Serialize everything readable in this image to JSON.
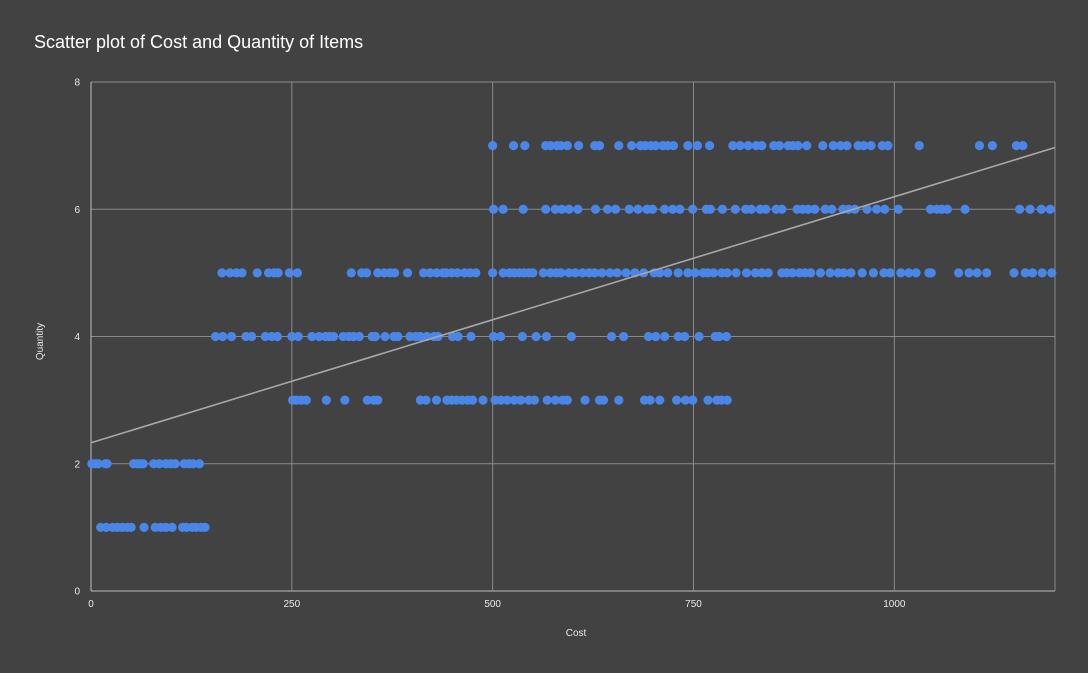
{
  "chart_data": {
    "type": "scatter",
    "title": "Scatter plot of Cost and Quantity of Items",
    "xlabel": "Cost",
    "ylabel": "Quantity",
    "xlim": [
      0,
      1200
    ],
    "ylim": [
      0,
      8
    ],
    "x_ticks": [
      "0",
      "250",
      "500",
      "750",
      "1000"
    ],
    "x_tick_values": [
      0,
      250,
      500,
      750,
      1000
    ],
    "y_ticks": [
      "0",
      "2",
      "4",
      "6",
      "8"
    ],
    "y_tick_values": [
      0,
      2,
      4,
      6,
      8
    ],
    "grid": true,
    "point_color": "#4a86e8",
    "trendline": {
      "type": "linear",
      "start": [
        0,
        2.33
      ],
      "end": [
        1200,
        6.97
      ],
      "color": "#a8a8a8"
    },
    "series": [
      {
        "points": [
          [
            1,
            2
          ],
          [
            5,
            2
          ],
          [
            9,
            2
          ],
          [
            18,
            2
          ],
          [
            20,
            2
          ],
          [
            53,
            2
          ],
          [
            58,
            2
          ],
          [
            62,
            2
          ],
          [
            65,
            2
          ],
          [
            78,
            2
          ],
          [
            85,
            2
          ],
          [
            93,
            2
          ],
          [
            99,
            2
          ],
          [
            105,
            2
          ],
          [
            116,
            2
          ],
          [
            122,
            2
          ],
          [
            127,
            2
          ],
          [
            135,
            2
          ],
          [
            12,
            1
          ],
          [
            19,
            1
          ],
          [
            27,
            1
          ],
          [
            33,
            1
          ],
          [
            39,
            1
          ],
          [
            45,
            1
          ],
          [
            50,
            1
          ],
          [
            66,
            1
          ],
          [
            80,
            1
          ],
          [
            87,
            1
          ],
          [
            93,
            1
          ],
          [
            101,
            1
          ],
          [
            114,
            1
          ],
          [
            119,
            1
          ],
          [
            126,
            1
          ],
          [
            131,
            1
          ],
          [
            137,
            1
          ],
          [
            142,
            1
          ],
          [
            163,
            5
          ],
          [
            173,
            5
          ],
          [
            181,
            5
          ],
          [
            188,
            5
          ],
          [
            207,
            5
          ],
          [
            221,
            5
          ],
          [
            228,
            5
          ],
          [
            233,
            5
          ],
          [
            247,
            5
          ],
          [
            257,
            5
          ],
          [
            324,
            5
          ],
          [
            337,
            5
          ],
          [
            343,
            5
          ],
          [
            357,
            5
          ],
          [
            365,
            5
          ],
          [
            372,
            5
          ],
          [
            378,
            5
          ],
          [
            394,
            5
          ],
          [
            414,
            5
          ],
          [
            422,
            5
          ],
          [
            430,
            5
          ],
          [
            438,
            5
          ],
          [
            442,
            5
          ],
          [
            449,
            5
          ],
          [
            456,
            5
          ],
          [
            465,
            5
          ],
          [
            472,
            5
          ],
          [
            479,
            5
          ],
          [
            500,
            5
          ],
          [
            513,
            5
          ],
          [
            521,
            5
          ],
          [
            527,
            5
          ],
          [
            533,
            5
          ],
          [
            539,
            5
          ],
          [
            545,
            5
          ],
          [
            550,
            5
          ],
          [
            563,
            5
          ],
          [
            572,
            5
          ],
          [
            579,
            5
          ],
          [
            585,
            5
          ],
          [
            595,
            5
          ],
          [
            603,
            5
          ],
          [
            612,
            5
          ],
          [
            620,
            5
          ],
          [
            627,
            5
          ],
          [
            636,
            5
          ],
          [
            646,
            5
          ],
          [
            655,
            5
          ],
          [
            666,
            5
          ],
          [
            677,
            5
          ],
          [
            688,
            5
          ],
          [
            701,
            5
          ],
          [
            708,
            5
          ],
          [
            718,
            5
          ],
          [
            731,
            5
          ],
          [
            743,
            5
          ],
          [
            752,
            5
          ],
          [
            762,
            5
          ],
          [
            768,
            5
          ],
          [
            775,
            5
          ],
          [
            785,
            5
          ],
          [
            792,
            5
          ],
          [
            803,
            5
          ],
          [
            816,
            5
          ],
          [
            827,
            5
          ],
          [
            835,
            5
          ],
          [
            843,
            5
          ],
          [
            860,
            5
          ],
          [
            866,
            5
          ],
          [
            873,
            5
          ],
          [
            882,
            5
          ],
          [
            889,
            5
          ],
          [
            896,
            5
          ],
          [
            908,
            5
          ],
          [
            920,
            5
          ],
          [
            930,
            5
          ],
          [
            937,
            5
          ],
          [
            946,
            5
          ],
          [
            960,
            5
          ],
          [
            974,
            5
          ],
          [
            987,
            5
          ],
          [
            995,
            5
          ],
          [
            1008,
            5
          ],
          [
            1018,
            5
          ],
          [
            1027,
            5
          ],
          [
            1043,
            5
          ],
          [
            1046,
            5
          ],
          [
            1080,
            5
          ],
          [
            1093,
            5
          ],
          [
            1103,
            5
          ],
          [
            1115,
            5
          ],
          [
            1149,
            5
          ],
          [
            1163,
            5
          ],
          [
            1172,
            5
          ],
          [
            1184,
            5
          ],
          [
            1196,
            5
          ],
          [
            155,
            4
          ],
          [
            164,
            4
          ],
          [
            175,
            4
          ],
          [
            193,
            4
          ],
          [
            200,
            4
          ],
          [
            217,
            4
          ],
          [
            225,
            4
          ],
          [
            232,
            4
          ],
          [
            250,
            4
          ],
          [
            258,
            4
          ],
          [
            275,
            4
          ],
          [
            284,
            4
          ],
          [
            292,
            4
          ],
          [
            297,
            4
          ],
          [
            302,
            4
          ],
          [
            314,
            4
          ],
          [
            321,
            4
          ],
          [
            327,
            4
          ],
          [
            334,
            4
          ],
          [
            350,
            4
          ],
          [
            354,
            4
          ],
          [
            366,
            4
          ],
          [
            377,
            4
          ],
          [
            382,
            4
          ],
          [
            397,
            4
          ],
          [
            404,
            4
          ],
          [
            410,
            4
          ],
          [
            418,
            4
          ],
          [
            427,
            4
          ],
          [
            432,
            4
          ],
          [
            450,
            4
          ],
          [
            457,
            4
          ],
          [
            473,
            4
          ],
          [
            501,
            4
          ],
          [
            510,
            4
          ],
          [
            537,
            4
          ],
          [
            554,
            4
          ],
          [
            567,
            4
          ],
          [
            598,
            4
          ],
          [
            648,
            4
          ],
          [
            663,
            4
          ],
          [
            694,
            4
          ],
          [
            703,
            4
          ],
          [
            714,
            4
          ],
          [
            731,
            4
          ],
          [
            739,
            4
          ],
          [
            757,
            4
          ],
          [
            777,
            4
          ],
          [
            782,
            4
          ],
          [
            791,
            4
          ],
          [
            251,
            3
          ],
          [
            256,
            3
          ],
          [
            262,
            3
          ],
          [
            268,
            3
          ],
          [
            293,
            3
          ],
          [
            316,
            3
          ],
          [
            344,
            3
          ],
          [
            352,
            3
          ],
          [
            357,
            3
          ],
          [
            410,
            3
          ],
          [
            417,
            3
          ],
          [
            430,
            3
          ],
          [
            443,
            3
          ],
          [
            449,
            3
          ],
          [
            455,
            3
          ],
          [
            462,
            3
          ],
          [
            469,
            3
          ],
          [
            475,
            3
          ],
          [
            488,
            3
          ],
          [
            503,
            3
          ],
          [
            510,
            3
          ],
          [
            518,
            3
          ],
          [
            527,
            3
          ],
          [
            535,
            3
          ],
          [
            545,
            3
          ],
          [
            552,
            3
          ],
          [
            568,
            3
          ],
          [
            578,
            3
          ],
          [
            587,
            3
          ],
          [
            593,
            3
          ],
          [
            615,
            3
          ],
          [
            633,
            3
          ],
          [
            638,
            3
          ],
          [
            657,
            3
          ],
          [
            689,
            3
          ],
          [
            696,
            3
          ],
          [
            708,
            3
          ],
          [
            729,
            3
          ],
          [
            740,
            3
          ],
          [
            749,
            3
          ],
          [
            768,
            3
          ],
          [
            779,
            3
          ],
          [
            785,
            3
          ],
          [
            792,
            3
          ],
          [
            501,
            6
          ],
          [
            513,
            6
          ],
          [
            538,
            6
          ],
          [
            566,
            6
          ],
          [
            578,
            6
          ],
          [
            586,
            6
          ],
          [
            595,
            6
          ],
          [
            606,
            6
          ],
          [
            628,
            6
          ],
          [
            643,
            6
          ],
          [
            653,
            6
          ],
          [
            670,
            6
          ],
          [
            681,
            6
          ],
          [
            692,
            6
          ],
          [
            699,
            6
          ],
          [
            714,
            6
          ],
          [
            724,
            6
          ],
          [
            733,
            6
          ],
          [
            749,
            6
          ],
          [
            766,
            6
          ],
          [
            771,
            6
          ],
          [
            786,
            6
          ],
          [
            802,
            6
          ],
          [
            815,
            6
          ],
          [
            822,
            6
          ],
          [
            833,
            6
          ],
          [
            840,
            6
          ],
          [
            853,
            6
          ],
          [
            860,
            6
          ],
          [
            879,
            6
          ],
          [
            886,
            6
          ],
          [
            893,
            6
          ],
          [
            901,
            6
          ],
          [
            914,
            6
          ],
          [
            922,
            6
          ],
          [
            936,
            6
          ],
          [
            943,
            6
          ],
          [
            951,
            6
          ],
          [
            966,
            6
          ],
          [
            978,
            6
          ],
          [
            988,
            6
          ],
          [
            1005,
            6
          ],
          [
            1045,
            6
          ],
          [
            1053,
            6
          ],
          [
            1059,
            6
          ],
          [
            1066,
            6
          ],
          [
            1088,
            6
          ],
          [
            1156,
            6
          ],
          [
            1169,
            6
          ],
          [
            1183,
            6
          ],
          [
            1194,
            6
          ],
          [
            500,
            7
          ],
          [
            526,
            7
          ],
          [
            540,
            7
          ],
          [
            566,
            7
          ],
          [
            572,
            7
          ],
          [
            580,
            7
          ],
          [
            585,
            7
          ],
          [
            593,
            7
          ],
          [
            607,
            7
          ],
          [
            627,
            7
          ],
          [
            633,
            7
          ],
          [
            657,
            7
          ],
          [
            673,
            7
          ],
          [
            684,
            7
          ],
          [
            690,
            7
          ],
          [
            697,
            7
          ],
          [
            703,
            7
          ],
          [
            712,
            7
          ],
          [
            718,
            7
          ],
          [
            725,
            7
          ],
          [
            743,
            7
          ],
          [
            755,
            7
          ],
          [
            770,
            7
          ],
          [
            799,
            7
          ],
          [
            808,
            7
          ],
          [
            818,
            7
          ],
          [
            828,
            7
          ],
          [
            835,
            7
          ],
          [
            850,
            7
          ],
          [
            857,
            7
          ],
          [
            868,
            7
          ],
          [
            874,
            7
          ],
          [
            880,
            7
          ],
          [
            891,
            7
          ],
          [
            911,
            7
          ],
          [
            924,
            7
          ],
          [
            933,
            7
          ],
          [
            941,
            7
          ],
          [
            955,
            7
          ],
          [
            962,
            7
          ],
          [
            971,
            7
          ],
          [
            985,
            7
          ],
          [
            992,
            7
          ],
          [
            1031,
            7
          ],
          [
            1106,
            7
          ],
          [
            1122,
            7
          ],
          [
            1152,
            7
          ],
          [
            1160,
            7
          ]
        ]
      }
    ]
  }
}
